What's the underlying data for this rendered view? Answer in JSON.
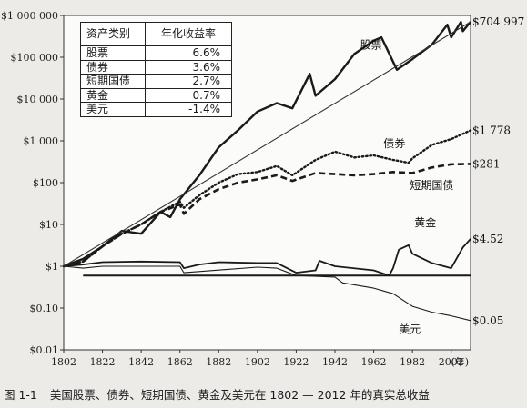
{
  "caption": {
    "number": "图 1-1",
    "text": "美国股票、债券、短期国债、黄金及美元在 1802 — 2012 年的真实总收益"
  },
  "table": {
    "header": {
      "asset": "资产类别",
      "return": "年化收益率"
    },
    "rows": [
      {
        "asset": "股票",
        "return": "6.6%"
      },
      {
        "asset": "债券",
        "return": "3.6%"
      },
      {
        "asset": "短期国债",
        "return": "2.7%"
      },
      {
        "asset": "黄金",
        "return": "0.7%"
      },
      {
        "asset": "美元",
        "return": "-1.4%"
      }
    ]
  },
  "chart_data": {
    "type": "line",
    "title": "",
    "xlabel": "(年)",
    "ylabel": "",
    "y_scale": "log",
    "xlim": [
      1802,
      2012
    ],
    "ylim": [
      0.01,
      1000000
    ],
    "x_ticks": [
      1802,
      1822,
      1842,
      1862,
      1882,
      1902,
      1922,
      1942,
      1962,
      1982,
      2002
    ],
    "y_ticks": [
      {
        "value": 1000000,
        "label": "$1 000 000"
      },
      {
        "value": 100000,
        "label": "$100 000"
      },
      {
        "value": 10000,
        "label": "$10 000"
      },
      {
        "value": 1000,
        "label": "$1 000"
      },
      {
        "value": 100,
        "label": "$100"
      },
      {
        "value": 10,
        "label": "$10"
      },
      {
        "value": 1,
        "label": "$1"
      },
      {
        "value": 0.1,
        "label": "$0.10"
      },
      {
        "value": 0.01,
        "label": "$0.01"
      }
    ],
    "grid": false,
    "legend": "top-left",
    "series": [
      {
        "name": "股票",
        "style": "solid-thick",
        "color": "#1a1a1a",
        "end_label": "$704 997",
        "x": [
          1802,
          1812,
          1822,
          1832,
          1842,
          1852,
          1857,
          1862,
          1872,
          1882,
          1892,
          1902,
          1912,
          1920,
          1929,
          1932,
          1942,
          1952,
          1962,
          1966,
          1974,
          1982,
          1992,
          2000,
          2002,
          2007,
          2008,
          2012
        ],
        "y": [
          1,
          1.5,
          3,
          7,
          6,
          20,
          15,
          40,
          150,
          700,
          1800,
          5000,
          8000,
          6000,
          40000,
          12000,
          30000,
          120000,
          250000,
          300000,
          50000,
          90000,
          200000,
          600000,
          300000,
          700000,
          420000,
          704997
        ]
      },
      {
        "name": "债券",
        "style": "dotted",
        "color": "#1a1a1a",
        "end_label": "$1 778",
        "x": [
          1802,
          1812,
          1822,
          1832,
          1842,
          1852,
          1862,
          1864,
          1872,
          1882,
          1892,
          1902,
          1912,
          1920,
          1932,
          1942,
          1952,
          1962,
          1972,
          1980,
          1982,
          1992,
          2002,
          2012
        ],
        "y": [
          1,
          1.3,
          3,
          6,
          10,
          20,
          35,
          25,
          50,
          100,
          160,
          180,
          250,
          150,
          350,
          550,
          400,
          450,
          350,
          300,
          380,
          800,
          1100,
          1778
        ]
      },
      {
        "name": "短期国债",
        "style": "dashed",
        "color": "#1a1a1a",
        "end_label": "$281",
        "x": [
          1802,
          1812,
          1822,
          1832,
          1842,
          1852,
          1862,
          1864,
          1872,
          1882,
          1892,
          1902,
          1912,
          1920,
          1932,
          1942,
          1952,
          1962,
          1972,
          1982,
          1992,
          2002,
          2012
        ],
        "y": [
          1,
          1.3,
          3,
          6,
          10,
          20,
          30,
          18,
          40,
          70,
          100,
          120,
          150,
          110,
          170,
          160,
          150,
          160,
          180,
          170,
          230,
          275,
          281
        ]
      },
      {
        "name": "黄金",
        "style": "solid",
        "color": "#1a1a1a",
        "end_label": "$4.52",
        "x": [
          1802,
          1812,
          1822,
          1842,
          1862,
          1864,
          1872,
          1882,
          1902,
          1912,
          1922,
          1932,
          1934,
          1942,
          1962,
          1970,
          1972,
          1975,
          1980,
          1982,
          1992,
          2002,
          2008,
          2012
        ],
        "y": [
          1,
          1.1,
          1.25,
          1.3,
          1.25,
          0.9,
          1.1,
          1.25,
          1.2,
          1.2,
          0.7,
          0.8,
          1.35,
          1.0,
          0.8,
          0.6,
          0.9,
          2.5,
          3.2,
          2.0,
          1.2,
          0.9,
          2.8,
          4.52
        ]
      },
      {
        "name": "美元",
        "style": "solid-thin",
        "color": "#1a1a1a",
        "end_label": "$0.05",
        "x": [
          1802,
          1812,
          1822,
          1862,
          1864,
          1902,
          1912,
          1922,
          1942,
          1946,
          1962,
          1972,
          1982,
          1992,
          2002,
          2012
        ],
        "y": [
          1,
          0.9,
          1.0,
          1.0,
          0.7,
          0.95,
          0.9,
          0.6,
          0.55,
          0.4,
          0.3,
          0.22,
          0.11,
          0.08,
          0.065,
          0.05
        ]
      },
      {
        "name": "趋势线",
        "style": "solid-thin",
        "color": "#333333",
        "end_label": "",
        "x": [
          1802,
          2012
        ],
        "y": [
          1,
          704997
        ]
      }
    ],
    "baseline": {
      "value": 0.6,
      "style": "solid-thick",
      "color": "#1a1a1a"
    }
  }
}
